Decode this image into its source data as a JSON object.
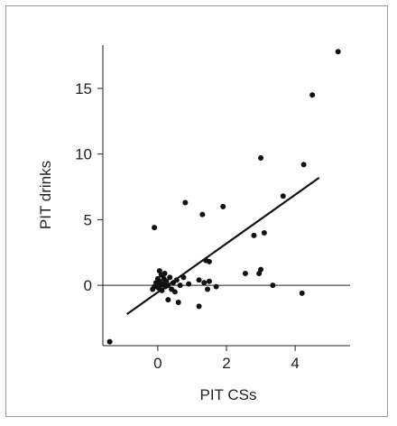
{
  "chart_data": {
    "type": "scatter",
    "title": "",
    "xlabel": "PIT CSs",
    "ylabel": "PIT drinks",
    "xlim": [
      -1.6,
      5.6
    ],
    "ylim": [
      -4.6,
      18.3
    ],
    "xticks": [
      0,
      2,
      4
    ],
    "yticks": [
      0,
      5,
      10,
      15
    ],
    "grid": false,
    "legend": "none",
    "zero_line": true,
    "regression_line": {
      "x": [
        -0.9,
        4.7
      ],
      "y": [
        -2.2,
        8.2
      ]
    },
    "points": [
      {
        "x": -1.4,
        "y": -4.3
      },
      {
        "x": -0.1,
        "y": 4.4
      },
      {
        "x": -0.1,
        "y": -0.1
      },
      {
        "x": -0.15,
        "y": -0.3
      },
      {
        "x": -0.05,
        "y": 0.2
      },
      {
        "x": 0.0,
        "y": 0.5
      },
      {
        "x": 0.02,
        "y": -0.2
      },
      {
        "x": 0.05,
        "y": 0.3
      },
      {
        "x": 0.05,
        "y": 1.1
      },
      {
        "x": 0.08,
        "y": 0.0
      },
      {
        "x": 0.1,
        "y": 0.8
      },
      {
        "x": 0.12,
        "y": -0.4
      },
      {
        "x": 0.15,
        "y": 0.1
      },
      {
        "x": 0.18,
        "y": 0.5
      },
      {
        "x": 0.2,
        "y": 0.9
      },
      {
        "x": 0.22,
        "y": -0.1
      },
      {
        "x": 0.25,
        "y": 0.3
      },
      {
        "x": 0.3,
        "y": 0.0
      },
      {
        "x": 0.3,
        "y": -1.1
      },
      {
        "x": 0.35,
        "y": 0.6
      },
      {
        "x": 0.4,
        "y": -0.3
      },
      {
        "x": 0.45,
        "y": 0.2
      },
      {
        "x": 0.5,
        "y": -0.5
      },
      {
        "x": 0.55,
        "y": 0.4
      },
      {
        "x": 0.6,
        "y": -1.3
      },
      {
        "x": 0.65,
        "y": 0.0
      },
      {
        "x": 0.75,
        "y": 0.6
      },
      {
        "x": 0.8,
        "y": 6.3
      },
      {
        "x": 0.9,
        "y": 0.1
      },
      {
        "x": 1.2,
        "y": -1.6
      },
      {
        "x": 1.2,
        "y": 0.4
      },
      {
        "x": 1.3,
        "y": 5.4
      },
      {
        "x": 1.35,
        "y": 0.2
      },
      {
        "x": 1.4,
        "y": 1.9
      },
      {
        "x": 1.45,
        "y": -0.3
      },
      {
        "x": 1.5,
        "y": 0.3
      },
      {
        "x": 1.5,
        "y": 1.8
      },
      {
        "x": 1.7,
        "y": -0.1
      },
      {
        "x": 1.9,
        "y": 6.0
      },
      {
        "x": 2.55,
        "y": 0.9
      },
      {
        "x": 2.8,
        "y": 3.8
      },
      {
        "x": 2.95,
        "y": 0.9
      },
      {
        "x": 3.0,
        "y": 9.7
      },
      {
        "x": 3.0,
        "y": 1.2
      },
      {
        "x": 3.1,
        "y": 4.0
      },
      {
        "x": 3.35,
        "y": 0.0
      },
      {
        "x": 3.65,
        "y": 6.8
      },
      {
        "x": 4.2,
        "y": -0.6
      },
      {
        "x": 4.25,
        "y": 9.2
      },
      {
        "x": 4.5,
        "y": 14.5
      },
      {
        "x": 5.25,
        "y": 17.8
      }
    ]
  }
}
